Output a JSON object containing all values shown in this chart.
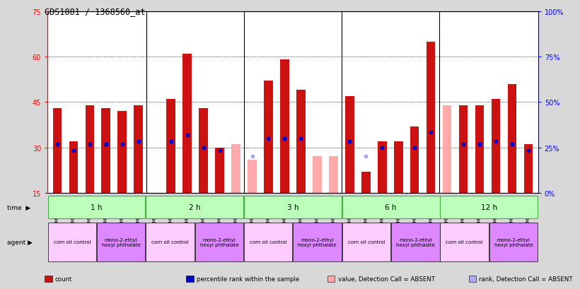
{
  "title": "GDS1881 / 1368560_at",
  "samples": [
    "GSM100955",
    "GSM100956",
    "GSM100957",
    "GSM100969",
    "GSM100970",
    "GSM100971",
    "GSM100958",
    "GSM100959",
    "GSM100972",
    "GSM100973",
    "GSM100974",
    "GSM100975",
    "GSM100960",
    "GSM100961",
    "GSM100962",
    "GSM100976",
    "GSM100977",
    "GSM100978",
    "GSM100963",
    "GSM100964",
    "GSM100965",
    "GSM100979",
    "GSM100980",
    "GSM100981",
    "GSM100951",
    "GSM100952",
    "GSM100953",
    "GSM100966",
    "GSM100967",
    "GSM100968"
  ],
  "count_values": [
    43,
    32,
    44,
    43,
    42,
    44,
    15,
    46,
    61,
    43,
    30,
    null,
    null,
    52,
    59,
    49,
    null,
    null,
    47,
    22,
    32,
    32,
    37,
    65,
    null,
    44,
    44,
    46,
    51,
    31
  ],
  "rank_values": [
    31,
    29,
    31,
    31,
    31,
    32,
    null,
    32,
    34,
    30,
    29,
    null,
    null,
    33,
    33,
    33,
    null,
    null,
    32,
    28,
    30,
    null,
    30,
    35,
    null,
    31,
    31,
    32,
    31,
    29
  ],
  "count_absent": [
    false,
    false,
    false,
    false,
    false,
    false,
    false,
    false,
    false,
    false,
    false,
    true,
    true,
    false,
    false,
    false,
    true,
    true,
    false,
    false,
    false,
    false,
    false,
    false,
    true,
    false,
    false,
    false,
    false,
    false
  ],
  "rank_absent": [
    false,
    false,
    false,
    false,
    false,
    false,
    false,
    false,
    false,
    false,
    false,
    false,
    true,
    false,
    false,
    false,
    false,
    false,
    false,
    true,
    false,
    false,
    false,
    false,
    false,
    false,
    false,
    false,
    false,
    false
  ],
  "absent_count_values": [
    null,
    null,
    null,
    null,
    null,
    null,
    null,
    null,
    null,
    null,
    null,
    31,
    26,
    null,
    null,
    null,
    27,
    27,
    null,
    null,
    null,
    null,
    null,
    null,
    44,
    null,
    null,
    null,
    null,
    null
  ],
  "absent_rank_values": [
    null,
    null,
    null,
    null,
    null,
    null,
    null,
    null,
    null,
    null,
    null,
    null,
    27,
    null,
    null,
    null,
    null,
    null,
    null,
    27,
    null,
    null,
    null,
    null,
    null,
    null,
    null,
    null,
    null,
    null
  ],
  "time_groups": [
    {
      "label": "1 h",
      "start": 0,
      "end": 6
    },
    {
      "label": "2 h",
      "start": 6,
      "end": 12
    },
    {
      "label": "3 h",
      "start": 12,
      "end": 18
    },
    {
      "label": "6 h",
      "start": 18,
      "end": 24
    },
    {
      "label": "12 h",
      "start": 24,
      "end": 30
    }
  ],
  "agent_groups": [
    {
      "label": "corn oil control",
      "start": 0,
      "end": 3,
      "color": "#ffccff"
    },
    {
      "label": "mono-2-ethyl\nhexyl phthalate",
      "start": 3,
      "end": 6,
      "color": "#dd88ff"
    },
    {
      "label": "corn oil control",
      "start": 6,
      "end": 9,
      "color": "#ffccff"
    },
    {
      "label": "mono-2-ethyl\nhexyl phthalate",
      "start": 9,
      "end": 12,
      "color": "#dd88ff"
    },
    {
      "label": "corn oil control",
      "start": 12,
      "end": 15,
      "color": "#ffccff"
    },
    {
      "label": "mono-2-ethyl\nhexyl phthalate",
      "start": 15,
      "end": 18,
      "color": "#dd88ff"
    },
    {
      "label": "corn oil control",
      "start": 18,
      "end": 21,
      "color": "#ffccff"
    },
    {
      "label": "mono-2-ethyl\nhexyl phthalate",
      "start": 21,
      "end": 24,
      "color": "#dd88ff"
    },
    {
      "label": "corn oil control",
      "start": 24,
      "end": 27,
      "color": "#ffccff"
    },
    {
      "label": "mono-2-ethyl\nhexyl phthalate",
      "start": 27,
      "end": 30,
      "color": "#dd88ff"
    }
  ],
  "ylim_left": [
    15,
    75
  ],
  "ylim_right": [
    0,
    100
  ],
  "yticks_left": [
    15,
    30,
    45,
    60,
    75
  ],
  "yticks_right": [
    0,
    25,
    50,
    75,
    100
  ],
  "ytick_labels_right": [
    "0%",
    "25%",
    "50%",
    "75%",
    "100%"
  ],
  "bar_color_present": "#cc1111",
  "bar_color_absent": "#ffaaaa",
  "rank_color_present": "#0000cc",
  "rank_color_absent": "#aaaaee",
  "bar_width": 0.55,
  "bg_color": "#d8d8d8",
  "plot_bg": "white",
  "time_row_color": "#bbffbb",
  "time_row_border": "#44aa44",
  "agent_corn_color": "#ffccff",
  "agent_mono_color": "#dd88ff"
}
